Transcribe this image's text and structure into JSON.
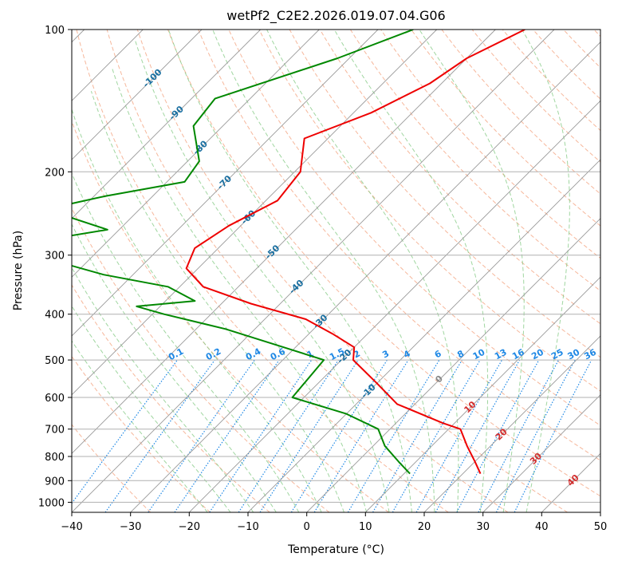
{
  "chart_data": {
    "type": "line",
    "title": "wetPf2_C2E2.2026.019.07.04.G06",
    "xlabel": "Temperature (°C)",
    "ylabel": "Pressure (hPa)",
    "xlim": [
      -40,
      50
    ],
    "ylim": [
      1050,
      100
    ],
    "y_scale": "log",
    "grid": true,
    "x_ticks": [
      "−40",
      "−30",
      "−20",
      "−10",
      "0",
      "10",
      "20",
      "30",
      "40",
      "50"
    ],
    "y_ticks": [
      "100",
      "200",
      "300",
      "400",
      "500",
      "600",
      "700",
      "800",
      "900",
      "1000"
    ],
    "series": [
      {
        "color": "#ee0000",
        "p": [
          100,
          115,
          130,
          150,
          170,
          200,
          230,
          260,
          290,
          320,
          350,
          380,
          410,
          440,
          470,
          500,
          560,
          620,
          680,
          700,
          760,
          820,
          870
        ],
        "t": [
          -45,
          -50,
          -52,
          -57,
          -64,
          -59,
          -58,
          -62,
          -64,
          -62,
          -56,
          -45,
          -33,
          -26,
          -20,
          -18,
          -10,
          -3,
          8,
          12,
          16,
          20,
          23
        ]
      },
      {
        "color": "#008800",
        "p": [
          100,
          115,
          140,
          160,
          190,
          210,
          225,
          240,
          265,
          290,
          310,
          330,
          350,
          375,
          385,
          400,
          430,
          470,
          500,
          600,
          650,
          700,
          760,
          820,
          870
        ],
        "t": [
          -64,
          -72,
          -86,
          -85,
          -78,
          -77,
          -88,
          -96,
          -82,
          -98,
          -85,
          -75,
          -62,
          -55,
          -64,
          -58,
          -45,
          -32,
          -23,
          -22,
          -10,
          -2,
          2,
          7,
          11
        ]
      }
    ],
    "isotherm_labels": [
      "-100",
      "-90",
      "-80",
      "-70",
      "-60",
      "-50",
      "-40",
      "-30",
      "-20",
      "-10",
      "0",
      "10",
      "20",
      "30",
      "40"
    ],
    "mixing_ratio_labels": [
      "0.1",
      "0.2",
      "0.4",
      "0.6",
      "1",
      "1.5",
      "2",
      "3",
      "4",
      "6",
      "8",
      "10",
      "13",
      "16",
      "20",
      "25",
      "30",
      "36"
    ],
    "colors": {
      "temperature": "#ee0000",
      "dewpoint": "#008800",
      "isotherm": "#999999",
      "dry_adiabat": "#f4a582",
      "moist_adiabat": "#88cc88",
      "mixing_ratio": "#1e88e5",
      "isotherm_label_cold": "#1a6fa0",
      "isotherm_label_warm": "#d32f2f"
    }
  }
}
